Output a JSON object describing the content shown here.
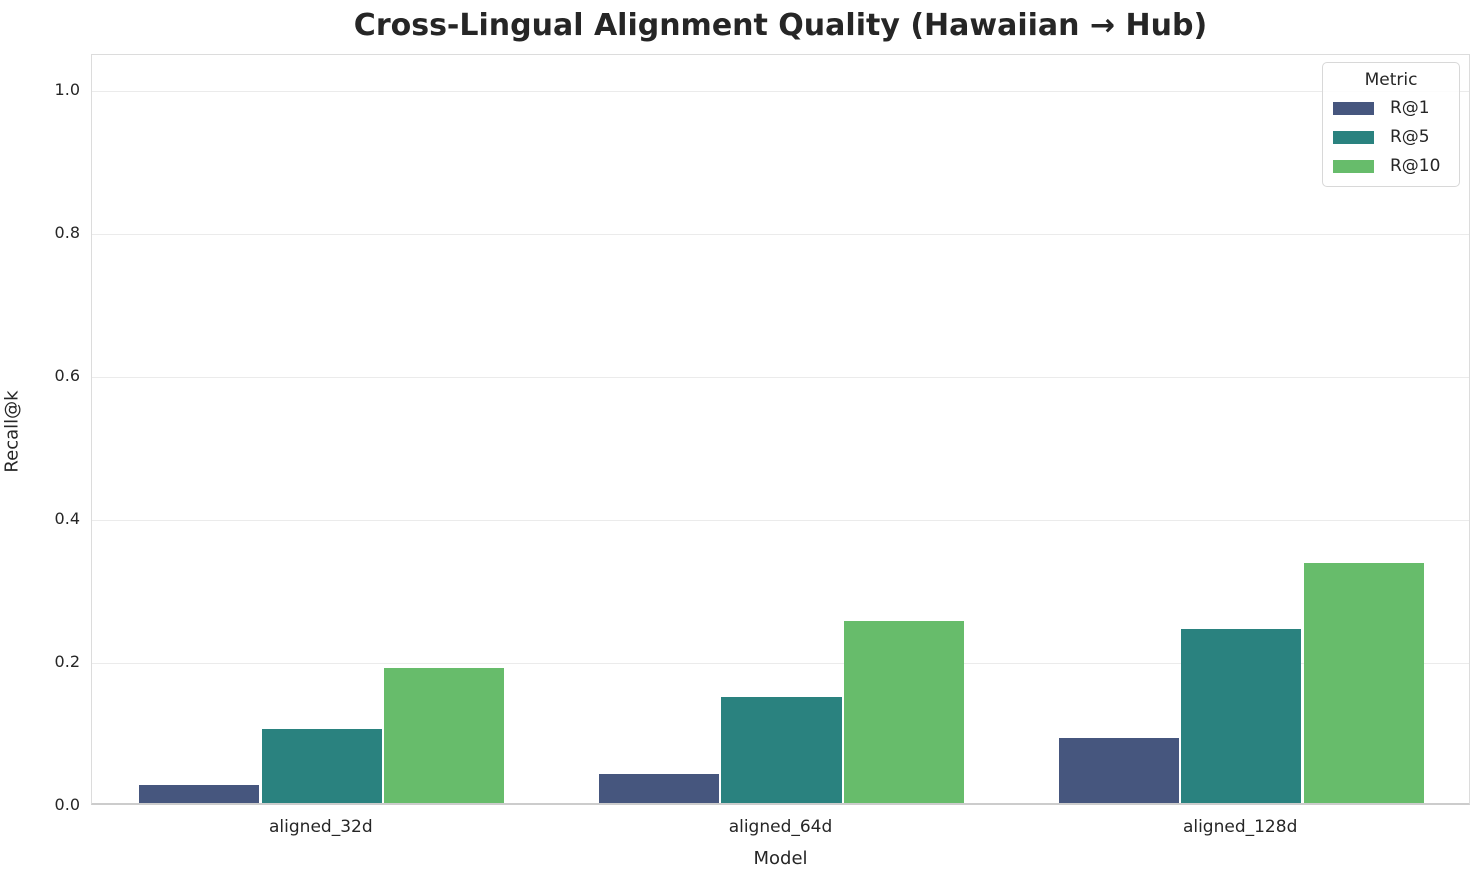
{
  "figure": {
    "background": "#ffffff",
    "text_color": "#262626",
    "grid_color": "#ebebeb",
    "spine_color": "#d9d9d9"
  },
  "chart_data": {
    "type": "bar",
    "title": "Cross-Lingual Alignment Quality (Hawaiian → Hub)",
    "xlabel": "Model",
    "ylabel": "Recall@k",
    "categories": [
      "aligned_32d",
      "aligned_64d",
      "aligned_128d"
    ],
    "series": [
      {
        "name": "R@1",
        "color": "#46567e",
        "values": [
          0.025,
          0.041,
          0.091
        ]
      },
      {
        "name": "R@5",
        "color": "#2a827f",
        "values": [
          0.103,
          0.148,
          0.243
        ]
      },
      {
        "name": "R@10",
        "color": "#67bc6b",
        "values": [
          0.189,
          0.255,
          0.335
        ]
      }
    ],
    "legend": {
      "title": "Metric",
      "entries": [
        "R@1",
        "R@5",
        "R@10"
      ],
      "position": "upper right"
    },
    "ylim": [
      0,
      1.05
    ],
    "yticks": [
      0.0,
      0.2,
      0.4,
      0.6,
      0.8,
      1.0
    ],
    "ytick_labels": [
      "0.0",
      "0.2",
      "0.4",
      "0.6",
      "0.8",
      "1.0"
    ],
    "grid": "horizontal"
  }
}
